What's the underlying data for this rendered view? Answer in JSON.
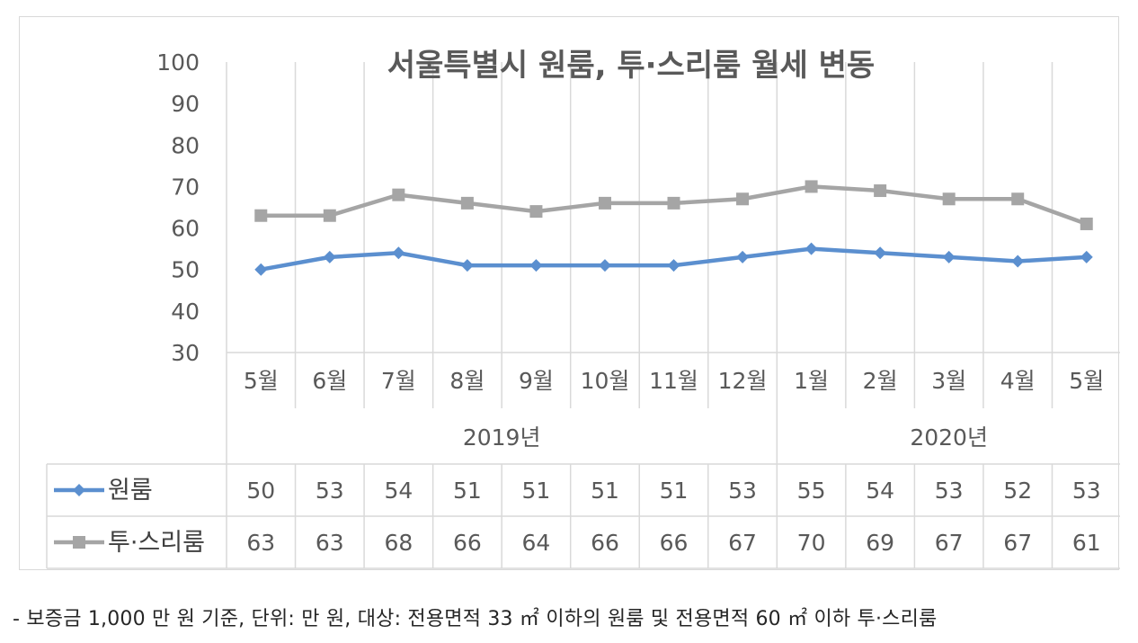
{
  "chart_data": {
    "type": "line",
    "title": "서울특별시 원룸, 투·스리룸 월세 변동",
    "categories": [
      "5월",
      "6월",
      "7월",
      "8월",
      "9월",
      "10월",
      "11월",
      "12월",
      "1월",
      "2월",
      "3월",
      "4월",
      "5월"
    ],
    "year_groups": [
      {
        "label": "2019년",
        "count": 8
      },
      {
        "label": "2020년",
        "count": 5
      }
    ],
    "y_ticks": [
      "100",
      "90",
      "80",
      "70",
      "60",
      "50",
      "40",
      "30"
    ],
    "ylim": [
      30,
      100
    ],
    "grid": true,
    "data_table": true,
    "series": [
      {
        "name": "원룸",
        "color": "#5b8fcf",
        "marker": "diamond",
        "values": [
          50,
          53,
          54,
          51,
          51,
          51,
          51,
          53,
          55,
          54,
          53,
          52,
          53
        ]
      },
      {
        "name": "투·스리룸",
        "color": "#a5a5a5",
        "marker": "square",
        "values": [
          63,
          63,
          68,
          66,
          64,
          66,
          66,
          67,
          70,
          69,
          67,
          67,
          61
        ]
      }
    ]
  },
  "footnote": "- 보증금 1,000 만 원 기준, 단위: 만 원, 대상: 전용면적 33 ㎡ 이하의 원룸 및 전용면적 60 ㎡ 이하 투·스리룸"
}
